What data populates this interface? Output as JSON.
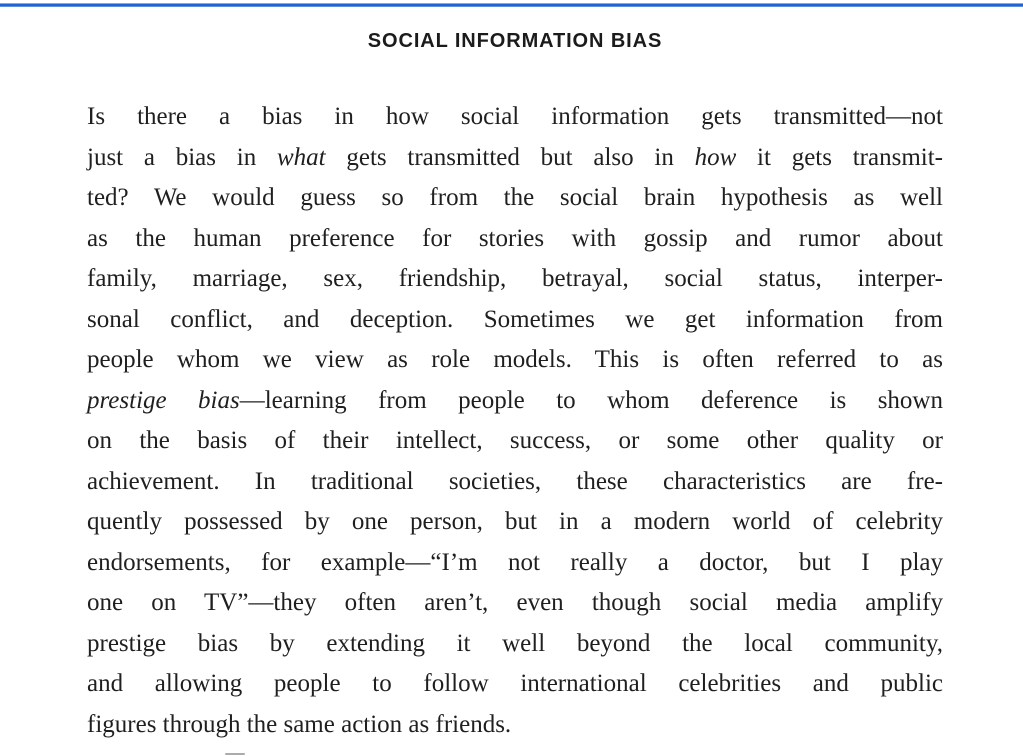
{
  "page": {
    "heading": "SOCIAL INFORMATION BIAS",
    "colors": {
      "top_border": "#1e62d4",
      "heading_text": "#1b1b1b",
      "body_text": "#1f1f1f",
      "background": "#ffffff"
    },
    "paragraph_lines": [
      {
        "last": false,
        "segments": [
          {
            "t": "Is there a bias in how social information gets transmitted—not",
            "i": false
          }
        ]
      },
      {
        "last": false,
        "segments": [
          {
            "t": "just a bias in ",
            "i": false
          },
          {
            "t": "what",
            "i": true
          },
          {
            "t": " gets transmitted but also in ",
            "i": false
          },
          {
            "t": "how",
            "i": true
          },
          {
            "t": " it gets transmit-",
            "i": false
          }
        ]
      },
      {
        "last": false,
        "segments": [
          {
            "t": "ted? We would guess so from the social brain hypothesis as well",
            "i": false
          }
        ]
      },
      {
        "last": false,
        "segments": [
          {
            "t": "as the human preference for stories with gossip and rumor about",
            "i": false
          }
        ]
      },
      {
        "last": false,
        "segments": [
          {
            "t": "family, marriage, sex, friendship, betrayal, social status, interper-",
            "i": false
          }
        ]
      },
      {
        "last": false,
        "segments": [
          {
            "t": "sonal conflict, and deception. Sometimes we get information from",
            "i": false
          }
        ]
      },
      {
        "last": false,
        "segments": [
          {
            "t": "people whom we view as role models. This is often referred to as",
            "i": false
          }
        ]
      },
      {
        "last": false,
        "segments": [
          {
            "t": "prestige bias",
            "i": true
          },
          {
            "t": "—learning from people to whom deference is shown",
            "i": false
          }
        ]
      },
      {
        "last": false,
        "segments": [
          {
            "t": "on the basis of their intellect, success, or some other quality or",
            "i": false
          }
        ]
      },
      {
        "last": false,
        "segments": [
          {
            "t": "achievement. In traditional societies, these characteristics are fre-",
            "i": false
          }
        ]
      },
      {
        "last": false,
        "segments": [
          {
            "t": "quently possessed by one person, but in a modern world of celebrity",
            "i": false
          }
        ]
      },
      {
        "last": false,
        "segments": [
          {
            "t": "endorsements, for example—“I’m not really a doctor, but I play",
            "i": false
          }
        ]
      },
      {
        "last": false,
        "segments": [
          {
            "t": "one on TV”—they often aren’t, even though social media amplify",
            "i": false
          }
        ]
      },
      {
        "last": false,
        "segments": [
          {
            "t": "prestige bias by extending it well beyond the local community,",
            "i": false
          }
        ]
      },
      {
        "last": false,
        "segments": [
          {
            "t": "and allowing people to follow international celebrities and public",
            "i": false
          }
        ]
      },
      {
        "last": true,
        "segments": [
          {
            "t": "figures through the same action as friends.",
            "i": false
          }
        ]
      }
    ]
  }
}
